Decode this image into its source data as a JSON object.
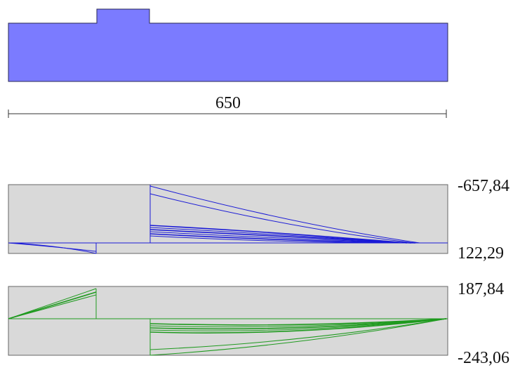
{
  "section": {
    "color": "#7b7bff",
    "stroke": "#2a2a55"
  },
  "dimension": {
    "label": "650",
    "color": "#333333"
  },
  "diagram_top": {
    "max_label": "-657,84",
    "min_label": "122,29",
    "background": "#d9d9d9",
    "line_color": "#1a1ad6"
  },
  "diagram_bottom": {
    "max_label": "187,84",
    "min_label": "-243,06",
    "background": "#d9d9d9",
    "line_color": "#1f9a1f"
  }
}
